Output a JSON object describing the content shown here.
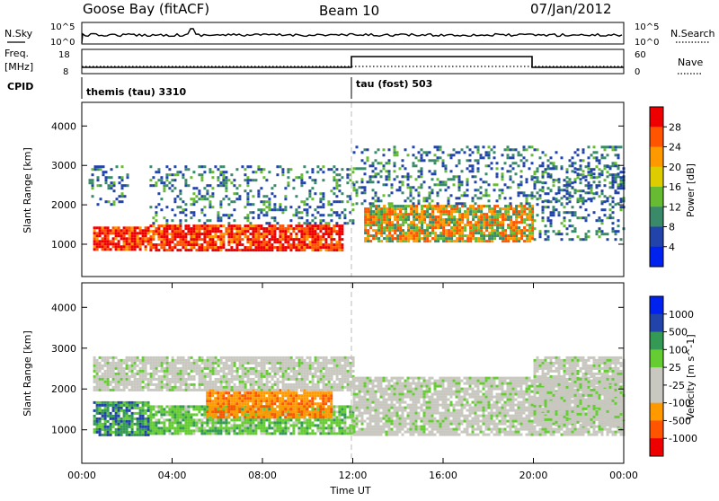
{
  "header": {
    "station": "Goose Bay (fitACF)",
    "beam": "Beam 10",
    "date": "07/Jan/2012"
  },
  "strips": {
    "nsky_label": "N.Sky",
    "nsky_ticks": [
      "10^5",
      "10^0"
    ],
    "nsearch_label": "N.Search",
    "nsearch_ticks": [
      "10^5",
      "10^0"
    ],
    "freq_label": "Freq.",
    "freq_unit": "[MHz]",
    "freq_ticks": [
      "18",
      "8"
    ],
    "nave_label": "Nave",
    "nave_ticks": [
      "60",
      "0"
    ],
    "cpid_label": "CPID",
    "cpid_segments": [
      {
        "label": "themis (tau) 3310",
        "start_hour": 0
      },
      {
        "label": "tau (fost) 503",
        "start_hour": 12
      }
    ]
  },
  "colors": {
    "power_scale": [
      "#0022ee",
      "#2244aa",
      "#3a8a6a",
      "#66bb33",
      "#ddcc00",
      "#ff9900",
      "#ff5500",
      "#ee0000"
    ],
    "velocity_scale": [
      "#ee0000",
      "#ff5500",
      "#ff9900",
      "#c8c8c0",
      "#c8c8c0",
      "#66cc33",
      "#339955",
      "#2244aa",
      "#0022ee"
    ],
    "gray_lines": "#bbbbbb"
  },
  "chart_data": [
    {
      "type": "heatmap",
      "name": "power",
      "ylabel": "Slant Range [km]",
      "yticks": [
        1000,
        2000,
        3000,
        4000
      ],
      "ylim": [
        180,
        4600
      ],
      "xlim": [
        0,
        24
      ],
      "colorbar_label": "Power [dB]",
      "colorbar_ticks": [
        "28",
        "24",
        "20",
        "16",
        "12",
        "8",
        "4"
      ],
      "regions": [
        {
          "x0": 0.5,
          "x1": 3.0,
          "y0": 900,
          "y1": 1450,
          "level": "strong"
        },
        {
          "x0": 3.0,
          "x1": 11.5,
          "y0": 850,
          "y1": 1500,
          "level": "strong"
        },
        {
          "x0": 0.3,
          "x1": 2.0,
          "y0": 2000,
          "y1": 3000,
          "level": "weak"
        },
        {
          "x0": 3.0,
          "x1": 12.0,
          "y0": 1500,
          "y1": 3000,
          "level": "weak"
        },
        {
          "x0": 12.5,
          "x1": 20.0,
          "y0": 1100,
          "y1": 2000,
          "level": "mixed"
        },
        {
          "x0": 20.0,
          "x1": 24.0,
          "y0": 1100,
          "y1": 3000,
          "level": "weak"
        },
        {
          "x0": 12.0,
          "x1": 24.0,
          "y0": 2000,
          "y1": 3500,
          "level": "weak"
        }
      ]
    },
    {
      "type": "heatmap",
      "name": "velocity",
      "ylabel": "Slant Range [km]",
      "xlabel": "Time UT",
      "yticks": [
        1000,
        2000,
        3000,
        4000
      ],
      "ylim": [
        180,
        4600
      ],
      "xlim": [
        0,
        24
      ],
      "xticks": [
        "00:00",
        "04:00",
        "08:00",
        "12:00",
        "16:00",
        "20:00",
        "00:00"
      ],
      "colorbar_label": "Velocity [m s^-1]",
      "colorbar_ticks": [
        "1000",
        "500",
        "100",
        "25",
        "-25",
        "-100",
        "-500",
        "-1000"
      ],
      "regions": [
        {
          "x0": 0.5,
          "x1": 3.0,
          "y0": 850,
          "y1": 1700,
          "level": "green-blue"
        },
        {
          "x0": 3.0,
          "x1": 12.0,
          "y0": 900,
          "y1": 1600,
          "level": "green"
        },
        {
          "x0": 5.5,
          "x1": 11.0,
          "y0": 1300,
          "y1": 2000,
          "level": "orange"
        },
        {
          "x0": 0.5,
          "x1": 12.0,
          "y0": 2000,
          "y1": 2800,
          "level": "gray"
        },
        {
          "x0": 12.0,
          "x1": 24.0,
          "y0": 900,
          "y1": 2300,
          "level": "gray"
        },
        {
          "x0": 20.0,
          "x1": 24.0,
          "y0": 1100,
          "y1": 2800,
          "level": "gray"
        }
      ]
    }
  ]
}
